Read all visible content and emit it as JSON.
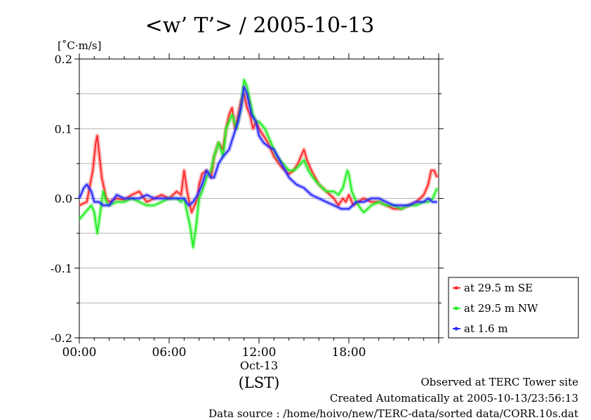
{
  "chart_data": {
    "type": "line",
    "title": "<w’ T’> / 2005-10-13",
    "ylabel": "[˚C·m/s]",
    "ylim": [
      -0.2,
      0.2
    ],
    "yticks": [
      -0.2,
      -0.1,
      0.0,
      0.1,
      0.2
    ],
    "ytick_labels": [
      "-0.2",
      "-0.1",
      "0.0",
      "0.1",
      "0.2"
    ],
    "xlim": [
      0,
      24
    ],
    "xticks": [
      0,
      6,
      12,
      18
    ],
    "xtick_labels": [
      "00:00",
      "06:00",
      "12:00",
      "18:00"
    ],
    "x_date_label": "Oct-13",
    "x_unit_label": "(LST)",
    "grid": true,
    "legend_position": "right-bottom",
    "series": [
      {
        "name": "at 29.5 m SE",
        "color": "#ff2a2a",
        "x": [
          0,
          0.5,
          0.9,
          1.1,
          1.2,
          1.3,
          1.5,
          1.8,
          2.0,
          2.5,
          3.0,
          3.5,
          4.0,
          4.5,
          5.0,
          5.5,
          6.0,
          6.5,
          6.8,
          7.0,
          7.2,
          7.5,
          7.7,
          7.9,
          8.0,
          8.2,
          8.5,
          8.8,
          9.0,
          9.3,
          9.6,
          9.8,
          10.0,
          10.2,
          10.4,
          10.6,
          10.8,
          11.0,
          11.2,
          11.4,
          11.6,
          11.8,
          12.0,
          12.3,
          12.6,
          13.0,
          13.5,
          14.0,
          14.3,
          14.6,
          14.8,
          15.0,
          15.2,
          15.5,
          16.0,
          16.5,
          17.0,
          17.3,
          17.6,
          17.8,
          18.0,
          18.3,
          18.6,
          19.0,
          19.5,
          20.0,
          20.5,
          21.0,
          21.5,
          22.0,
          22.5,
          23.0,
          23.3,
          23.5,
          23.7,
          23.9
        ],
        "values": [
          -0.01,
          -0.005,
          0.04,
          0.08,
          0.09,
          0.07,
          0.03,
          0.0,
          -0.005,
          0.0,
          -0.002,
          0.005,
          0.01,
          -0.005,
          0.0,
          0.005,
          0.0,
          0.01,
          0.005,
          0.04,
          0.01,
          -0.02,
          -0.01,
          0.0,
          0.02,
          0.035,
          0.04,
          0.03,
          0.06,
          0.08,
          0.07,
          0.1,
          0.12,
          0.13,
          0.1,
          0.12,
          0.14,
          0.15,
          0.13,
          0.12,
          0.1,
          0.11,
          0.1,
          0.09,
          0.08,
          0.06,
          0.045,
          0.035,
          0.04,
          0.05,
          0.06,
          0.07,
          0.055,
          0.04,
          0.02,
          0.01,
          0.0,
          -0.01,
          0.0,
          -0.005,
          0.005,
          -0.01,
          -0.005,
          0.0,
          -0.005,
          -0.005,
          -0.01,
          -0.015,
          -0.015,
          -0.01,
          -0.005,
          0.005,
          0.02,
          0.04,
          0.04,
          0.03
        ]
      },
      {
        "name": "at 29.5 m NW",
        "color": "#22ee22",
        "x": [
          0,
          0.4,
          0.8,
          1.0,
          1.2,
          1.4,
          1.6,
          1.8,
          2.0,
          2.5,
          3.0,
          3.5,
          4.0,
          4.5,
          5.0,
          5.5,
          6.0,
          6.5,
          6.8,
          7.0,
          7.2,
          7.4,
          7.6,
          7.8,
          8.0,
          8.2,
          8.5,
          8.8,
          9.0,
          9.3,
          9.6,
          9.8,
          10.0,
          10.2,
          10.5,
          10.8,
          11.0,
          11.2,
          11.4,
          11.6,
          11.8,
          12.0,
          12.4,
          12.8,
          13.2,
          13.6,
          14.0,
          14.3,
          14.6,
          14.8,
          15.0,
          15.3,
          15.6,
          16.0,
          16.5,
          17.0,
          17.3,
          17.6,
          17.9,
          18.0,
          18.2,
          18.5,
          18.8,
          19.0,
          19.5,
          20.0,
          20.5,
          21.0,
          21.5,
          22.0,
          22.5,
          23.0,
          23.3,
          23.6,
          23.9
        ],
        "values": [
          -0.03,
          -0.02,
          -0.01,
          -0.02,
          -0.05,
          -0.02,
          0.01,
          -0.005,
          -0.01,
          -0.005,
          -0.005,
          0.0,
          -0.005,
          -0.01,
          -0.01,
          -0.005,
          0.0,
          0.0,
          -0.005,
          0.0,
          -0.02,
          -0.04,
          -0.07,
          -0.04,
          0.0,
          0.01,
          0.03,
          0.04,
          0.06,
          0.08,
          0.06,
          0.1,
          0.11,
          0.12,
          0.1,
          0.13,
          0.17,
          0.16,
          0.14,
          0.12,
          0.11,
          0.11,
          0.1,
          0.08,
          0.06,
          0.05,
          0.04,
          0.04,
          0.045,
          0.05,
          0.055,
          0.04,
          0.03,
          0.02,
          0.01,
          0.01,
          0.005,
          0.015,
          0.04,
          0.035,
          0.01,
          -0.005,
          -0.015,
          -0.02,
          -0.01,
          -0.005,
          -0.01,
          -0.01,
          -0.015,
          -0.01,
          -0.01,
          -0.005,
          -0.005,
          0.0,
          0.015
        ]
      },
      {
        "name": "at 1.6 m",
        "color": "#2a2aff",
        "x": [
          0,
          0.3,
          0.5,
          0.8,
          1.0,
          1.3,
          1.6,
          2.0,
          2.5,
          3.0,
          3.5,
          4.0,
          4.5,
          5.0,
          5.5,
          6.0,
          6.5,
          7.0,
          7.3,
          7.6,
          7.9,
          8.2,
          8.5,
          8.8,
          9.0,
          9.3,
          9.6,
          10.0,
          10.3,
          10.6,
          10.8,
          11.0,
          11.2,
          11.5,
          11.8,
          12.0,
          12.3,
          12.6,
          13.0,
          13.5,
          14.0,
          14.5,
          15.0,
          15.5,
          16.0,
          16.5,
          17.0,
          17.5,
          18.0,
          18.5,
          19.0,
          19.5,
          20.0,
          20.5,
          21.0,
          21.5,
          22.0,
          22.5,
          23.0,
          23.3,
          23.6,
          23.9
        ],
        "values": [
          0.0,
          0.015,
          0.02,
          0.01,
          -0.005,
          -0.005,
          -0.01,
          -0.01,
          0.005,
          0.0,
          0.0,
          0.0,
          0.005,
          0.0,
          0.0,
          0.0,
          0.0,
          0.0,
          -0.01,
          -0.005,
          0.005,
          0.02,
          0.04,
          0.03,
          0.03,
          0.05,
          0.06,
          0.07,
          0.09,
          0.11,
          0.13,
          0.16,
          0.15,
          0.12,
          0.11,
          0.09,
          0.08,
          0.075,
          0.07,
          0.05,
          0.03,
          0.02,
          0.015,
          0.005,
          0.0,
          -0.005,
          -0.01,
          -0.015,
          -0.015,
          -0.005,
          -0.005,
          0.0,
          0.0,
          -0.005,
          -0.01,
          -0.01,
          -0.01,
          -0.005,
          -0.005,
          0.0,
          -0.005,
          -0.005
        ]
      }
    ]
  },
  "footer": {
    "site": "Observed at TERC Tower site",
    "created": "Created Automatically at 2005-10-13/23:56:13",
    "source": "Data source : /home/hoivo/new/TERC-data/sorted  data/CORR.10s.dat"
  }
}
